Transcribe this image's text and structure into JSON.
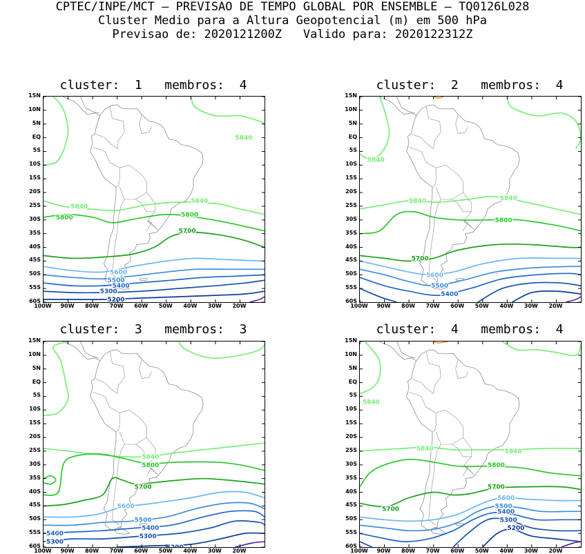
{
  "header": {
    "line1": "CPTEC/INPE/MCT – PREVISAO DE TEMPO GLOBAL POR ENSEMBLE – TQ0126L028",
    "line2": "Cluster Medio para a Altura Geopotencial (m) em 500 hPa",
    "line3": "Previsao de: 2020121200Z   Valido para: 2020122312Z"
  },
  "axes": {
    "lat_labels": [
      "15N",
      "10N",
      "5N",
      "EQ",
      "5S",
      "10S",
      "15S",
      "20S",
      "25S",
      "30S",
      "35S",
      "40S",
      "45S",
      "50S",
      "55S",
      "60S"
    ],
    "lon_labels": [
      "100W",
      "90W",
      "80W",
      "70W",
      "60W",
      "50W",
      "40W",
      "30W",
      "20W"
    ]
  },
  "colors": {
    "c5840": "#78ee78",
    "c5800": "#28c828",
    "c5700": "#1aa01a",
    "c5600": "#6eb4f0",
    "c5500": "#3c8cdc",
    "c5400": "#1e64c8",
    "c5300": "#1450aa",
    "c5200": "#0a3c96",
    "c5100": "#5a28a0",
    "c5900": "#e8a032"
  },
  "panels": [
    {
      "title": "cluster:  1   membros:  4",
      "contour_labels": [
        {
          "text": "5840",
          "lon": -22,
          "lat": 0,
          "color": "c5840"
        },
        {
          "text": "5840",
          "lon": -89,
          "lat": -25,
          "color": "c5840"
        },
        {
          "text": "5840",
          "lon": -40,
          "lat": -23,
          "color": "c5840"
        },
        {
          "text": "5800",
          "lon": -95,
          "lat": -29,
          "color": "c5800"
        },
        {
          "text": "5800",
          "lon": -44,
          "lat": -28,
          "color": "c5800"
        },
        {
          "text": "5700",
          "lon": -45,
          "lat": -34,
          "color": "c5700"
        },
        {
          "text": "5600",
          "lon": -73,
          "lat": -49,
          "color": "c5600"
        },
        {
          "text": "5500",
          "lon": -74,
          "lat": -52,
          "color": "c5500"
        },
        {
          "text": "5400",
          "lon": -72,
          "lat": -54,
          "color": "c5400"
        },
        {
          "text": "5300",
          "lon": -77,
          "lat": -56,
          "color": "c5300"
        },
        {
          "text": "5200",
          "lon": -74,
          "lat": -59,
          "color": "c5200"
        }
      ]
    },
    {
      "title": "cluster:  2   membros:  4",
      "contour_labels": [
        {
          "text": "5840",
          "lon": -97,
          "lat": -8,
          "color": "c5840"
        },
        {
          "text": "5840",
          "lon": -80,
          "lat": -23,
          "color": "c5840"
        },
        {
          "text": "5840",
          "lon": -43,
          "lat": -22,
          "color": "c5840"
        },
        {
          "text": "5800",
          "lon": -45,
          "lat": -30,
          "color": "c5800"
        },
        {
          "text": "5700",
          "lon": -79,
          "lat": -44,
          "color": "c5700"
        },
        {
          "text": "5600",
          "lon": -73,
          "lat": -50,
          "color": "c5600"
        },
        {
          "text": "5500",
          "lon": -71,
          "lat": -54,
          "color": "c5500"
        },
        {
          "text": "5400",
          "lon": -67,
          "lat": -57,
          "color": "c5400"
        }
      ]
    },
    {
      "title": "cluster:  3   membros:  3",
      "contour_labels": [
        {
          "text": "5840",
          "lon": -60,
          "lat": -27,
          "color": "c5840"
        },
        {
          "text": "5800",
          "lon": -60,
          "lat": -30,
          "color": "c5800"
        },
        {
          "text": "5700",
          "lon": -63,
          "lat": -38,
          "color": "c5700"
        },
        {
          "text": "5600",
          "lon": -70,
          "lat": -45,
          "color": "c5600"
        },
        {
          "text": "5500",
          "lon": -63,
          "lat": -50,
          "color": "c5500"
        },
        {
          "text": "5400",
          "lon": -60,
          "lat": -53,
          "color": "c5400"
        },
        {
          "text": "5300",
          "lon": -61,
          "lat": -56,
          "color": "c5300"
        },
        {
          "text": "5400",
          "lon": -104,
          "lat": -55,
          "color": "c5400"
        },
        {
          "text": "5300",
          "lon": -102,
          "lat": -58,
          "color": "c5300"
        },
        {
          "text": "5200",
          "lon": -50,
          "lat": -60,
          "color": "c5200"
        }
      ]
    },
    {
      "title": "cluster:  4   membros:  4",
      "contour_labels": [
        {
          "text": "5840",
          "lon": -99,
          "lat": -7,
          "color": "c5840"
        },
        {
          "text": "5840",
          "lon": -77,
          "lat": -24,
          "color": "c5840"
        },
        {
          "text": "5840",
          "lon": -41,
          "lat": -25,
          "color": "c5840"
        },
        {
          "text": "5800",
          "lon": -48,
          "lat": -30,
          "color": "c5800"
        },
        {
          "text": "5700",
          "lon": -48,
          "lat": -38,
          "color": "c5700"
        },
        {
          "text": "5700",
          "lon": -91,
          "lat": -46,
          "color": "c5700"
        },
        {
          "text": "5600",
          "lon": -44,
          "lat": -42,
          "color": "c5600"
        },
        {
          "text": "5500",
          "lon": -45,
          "lat": -45,
          "color": "c5500"
        },
        {
          "text": "5400",
          "lon": -44,
          "lat": -47,
          "color": "c5400"
        },
        {
          "text": "5300",
          "lon": -43,
          "lat": -50,
          "color": "c5300"
        },
        {
          "text": "5200",
          "lon": -40,
          "lat": -53,
          "color": "c5200"
        }
      ]
    }
  ]
}
